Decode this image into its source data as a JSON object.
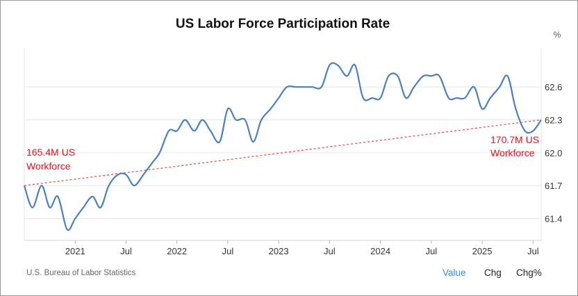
{
  "chart_data": {
    "type": "line",
    "title": "US Labor Force Participation Rate",
    "unit_label": "%",
    "ylim": [
      61.2,
      62.95
    ],
    "y_ticks": [
      61.4,
      61.7,
      62.0,
      62.3,
      62.6
    ],
    "x_range": [
      2020.5,
      2025.58
    ],
    "x_ticks": [
      {
        "value": 2021.0,
        "label": "2021"
      },
      {
        "value": 2021.5,
        "label": "Jul"
      },
      {
        "value": 2022.0,
        "label": "2022"
      },
      {
        "value": 2022.5,
        "label": "Jul"
      },
      {
        "value": 2023.0,
        "label": "2023"
      },
      {
        "value": 2023.5,
        "label": "Jul"
      },
      {
        "value": 2024.0,
        "label": "2024"
      },
      {
        "value": 2024.5,
        "label": "Jul"
      },
      {
        "value": 2025.0,
        "label": "2025"
      },
      {
        "value": 2025.5,
        "label": "Jul"
      }
    ],
    "series": [
      {
        "name": "Value",
        "color": "#4a7fc1",
        "x": [
          2020.5,
          2020.58,
          2020.67,
          2020.75,
          2020.83,
          2020.92,
          2021.0,
          2021.08,
          2021.17,
          2021.25,
          2021.33,
          2021.42,
          2021.5,
          2021.58,
          2021.67,
          2021.75,
          2021.83,
          2021.92,
          2022.0,
          2022.08,
          2022.17,
          2022.25,
          2022.33,
          2022.42,
          2022.5,
          2022.58,
          2022.67,
          2022.75,
          2022.83,
          2022.92,
          2023.0,
          2023.08,
          2023.17,
          2023.25,
          2023.33,
          2023.42,
          2023.5,
          2023.58,
          2023.67,
          2023.75,
          2023.83,
          2023.92,
          2024.0,
          2024.08,
          2024.17,
          2024.25,
          2024.33,
          2024.42,
          2024.5,
          2024.58,
          2024.67,
          2024.75,
          2024.83,
          2024.92,
          2025.0,
          2025.08,
          2025.17,
          2025.25,
          2025.33,
          2025.42,
          2025.5,
          2025.58
        ],
        "values": [
          61.7,
          61.5,
          61.7,
          61.5,
          61.6,
          61.3,
          61.4,
          61.5,
          61.6,
          61.5,
          61.7,
          61.8,
          61.8,
          61.7,
          61.8,
          61.9,
          62.0,
          62.2,
          62.2,
          62.3,
          62.2,
          62.3,
          62.2,
          62.1,
          62.4,
          62.3,
          62.3,
          62.1,
          62.3,
          62.4,
          62.5,
          62.6,
          62.6,
          62.6,
          62.6,
          62.6,
          62.8,
          62.8,
          62.7,
          62.8,
          62.5,
          62.5,
          62.5,
          62.7,
          62.7,
          62.5,
          62.6,
          62.7,
          62.7,
          62.7,
          62.5,
          62.5,
          62.5,
          62.6,
          62.4,
          62.5,
          62.6,
          62.7,
          62.4,
          62.2,
          62.2,
          62.3
        ]
      }
    ],
    "trendline": {
      "style": "dotted",
      "color": "#f05a5a",
      "x": [
        2020.5,
        2025.58
      ],
      "values": [
        61.7,
        62.3
      ]
    },
    "annotations": [
      {
        "line1": "165.4M US",
        "line2": "Workforce",
        "position": "left"
      },
      {
        "line1": "170.7M US",
        "line2": "Workforce",
        "position": "right"
      }
    ]
  },
  "footer": {
    "source": "U.S. Bureau of Labor Statistics",
    "tabs": [
      {
        "label": "Value",
        "active": true
      },
      {
        "label": "Chg",
        "active": false
      },
      {
        "label": "Chg%",
        "active": false
      }
    ]
  },
  "colors": {
    "accent": "#3a8ad6",
    "annotation": "#e8101a",
    "grid": "#e6e6e6"
  }
}
